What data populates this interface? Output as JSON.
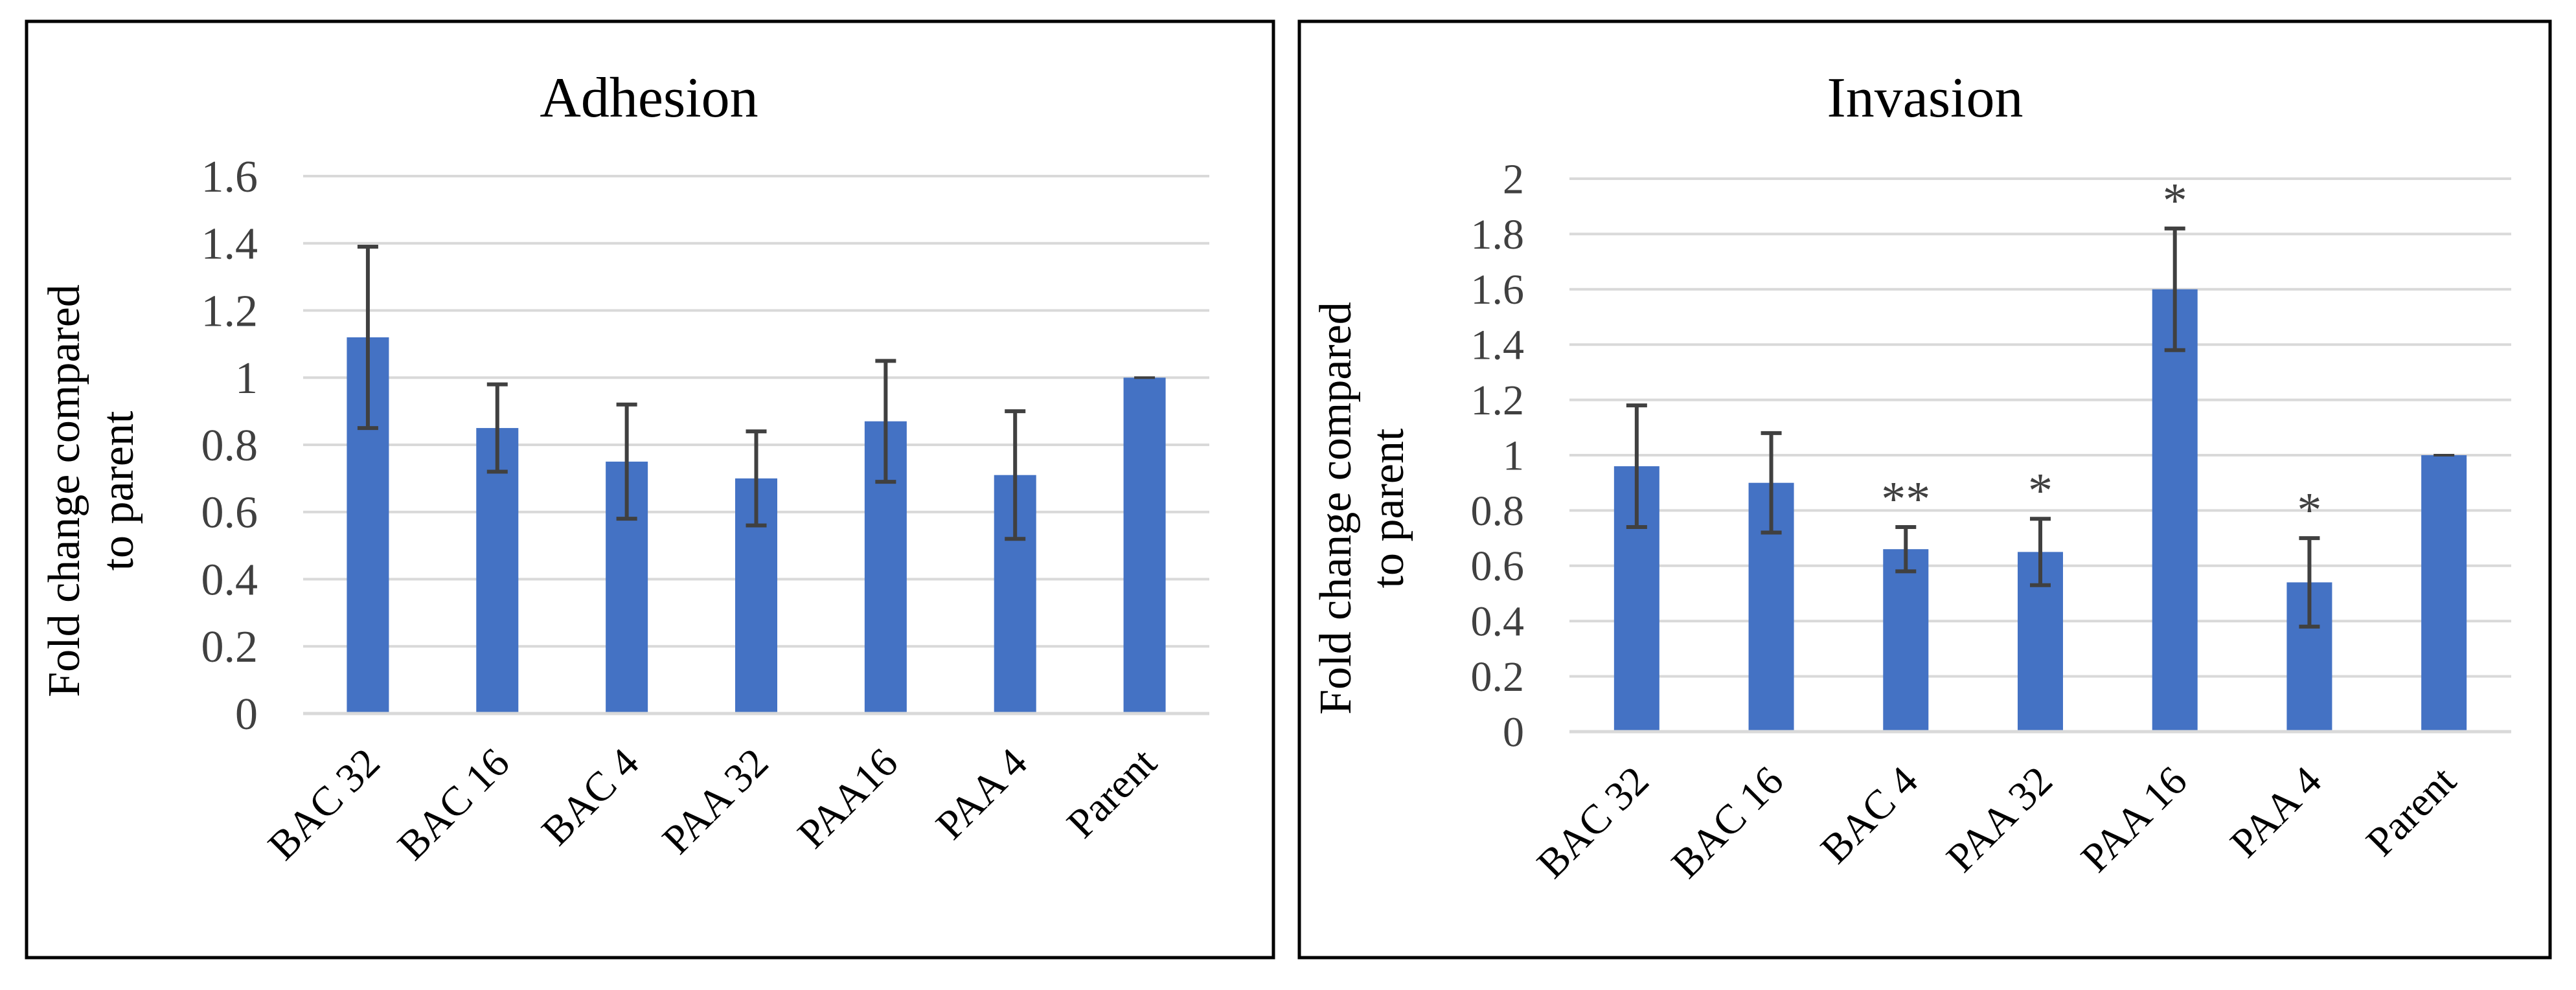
{
  "colors": {
    "bar": "#4472c4",
    "grid": "#d9d9d9",
    "text": "#404040",
    "title": "#000000",
    "errorbar": "#404040",
    "frame": "#000000"
  },
  "chart_data": [
    {
      "type": "bar",
      "title": "Adhesion",
      "ylabel_lines": [
        "Fold change compared",
        "to parent"
      ],
      "categories": [
        "BAC 32",
        "BAC 16",
        "BAC 4",
        "PAA 32",
        "PAA16",
        "PAA 4",
        "Parent"
      ],
      "values": [
        1.12,
        0.85,
        0.75,
        0.7,
        0.87,
        0.71,
        1.0
      ],
      "errors": [
        0.27,
        0.13,
        0.17,
        0.14,
        0.18,
        0.19,
        0.0
      ],
      "annotations": [
        "",
        "",
        "",
        "",
        "",
        "",
        ""
      ],
      "ylim": [
        0,
        1.6
      ],
      "yticks": [
        "0",
        "0.2",
        "0.4",
        "0.6",
        "0.8",
        "1",
        "1.2",
        "1.4",
        "1.6"
      ],
      "grid": true,
      "legend": "none"
    },
    {
      "type": "bar",
      "title": "Invasion",
      "ylabel_lines": [
        "Fold change compared",
        "to parent"
      ],
      "categories": [
        "BAC 32",
        "BAC 16",
        "BAC 4",
        "PAA 32",
        "PAA 16",
        "PAA 4",
        "Parent"
      ],
      "values": [
        0.96,
        0.9,
        0.66,
        0.65,
        1.6,
        0.54,
        1.0
      ],
      "errors": [
        0.22,
        0.18,
        0.08,
        0.12,
        0.22,
        0.16,
        0.0
      ],
      "annotations": [
        "",
        "",
        "**",
        "*",
        "*",
        "*",
        ""
      ],
      "ylim": [
        0,
        2
      ],
      "yticks": [
        "0",
        "0.2",
        "0.4",
        "0.6",
        "0.8",
        "1",
        "1.2",
        "1.4",
        "1.6",
        "1.8",
        "2"
      ],
      "grid": true,
      "legend": "none"
    }
  ]
}
